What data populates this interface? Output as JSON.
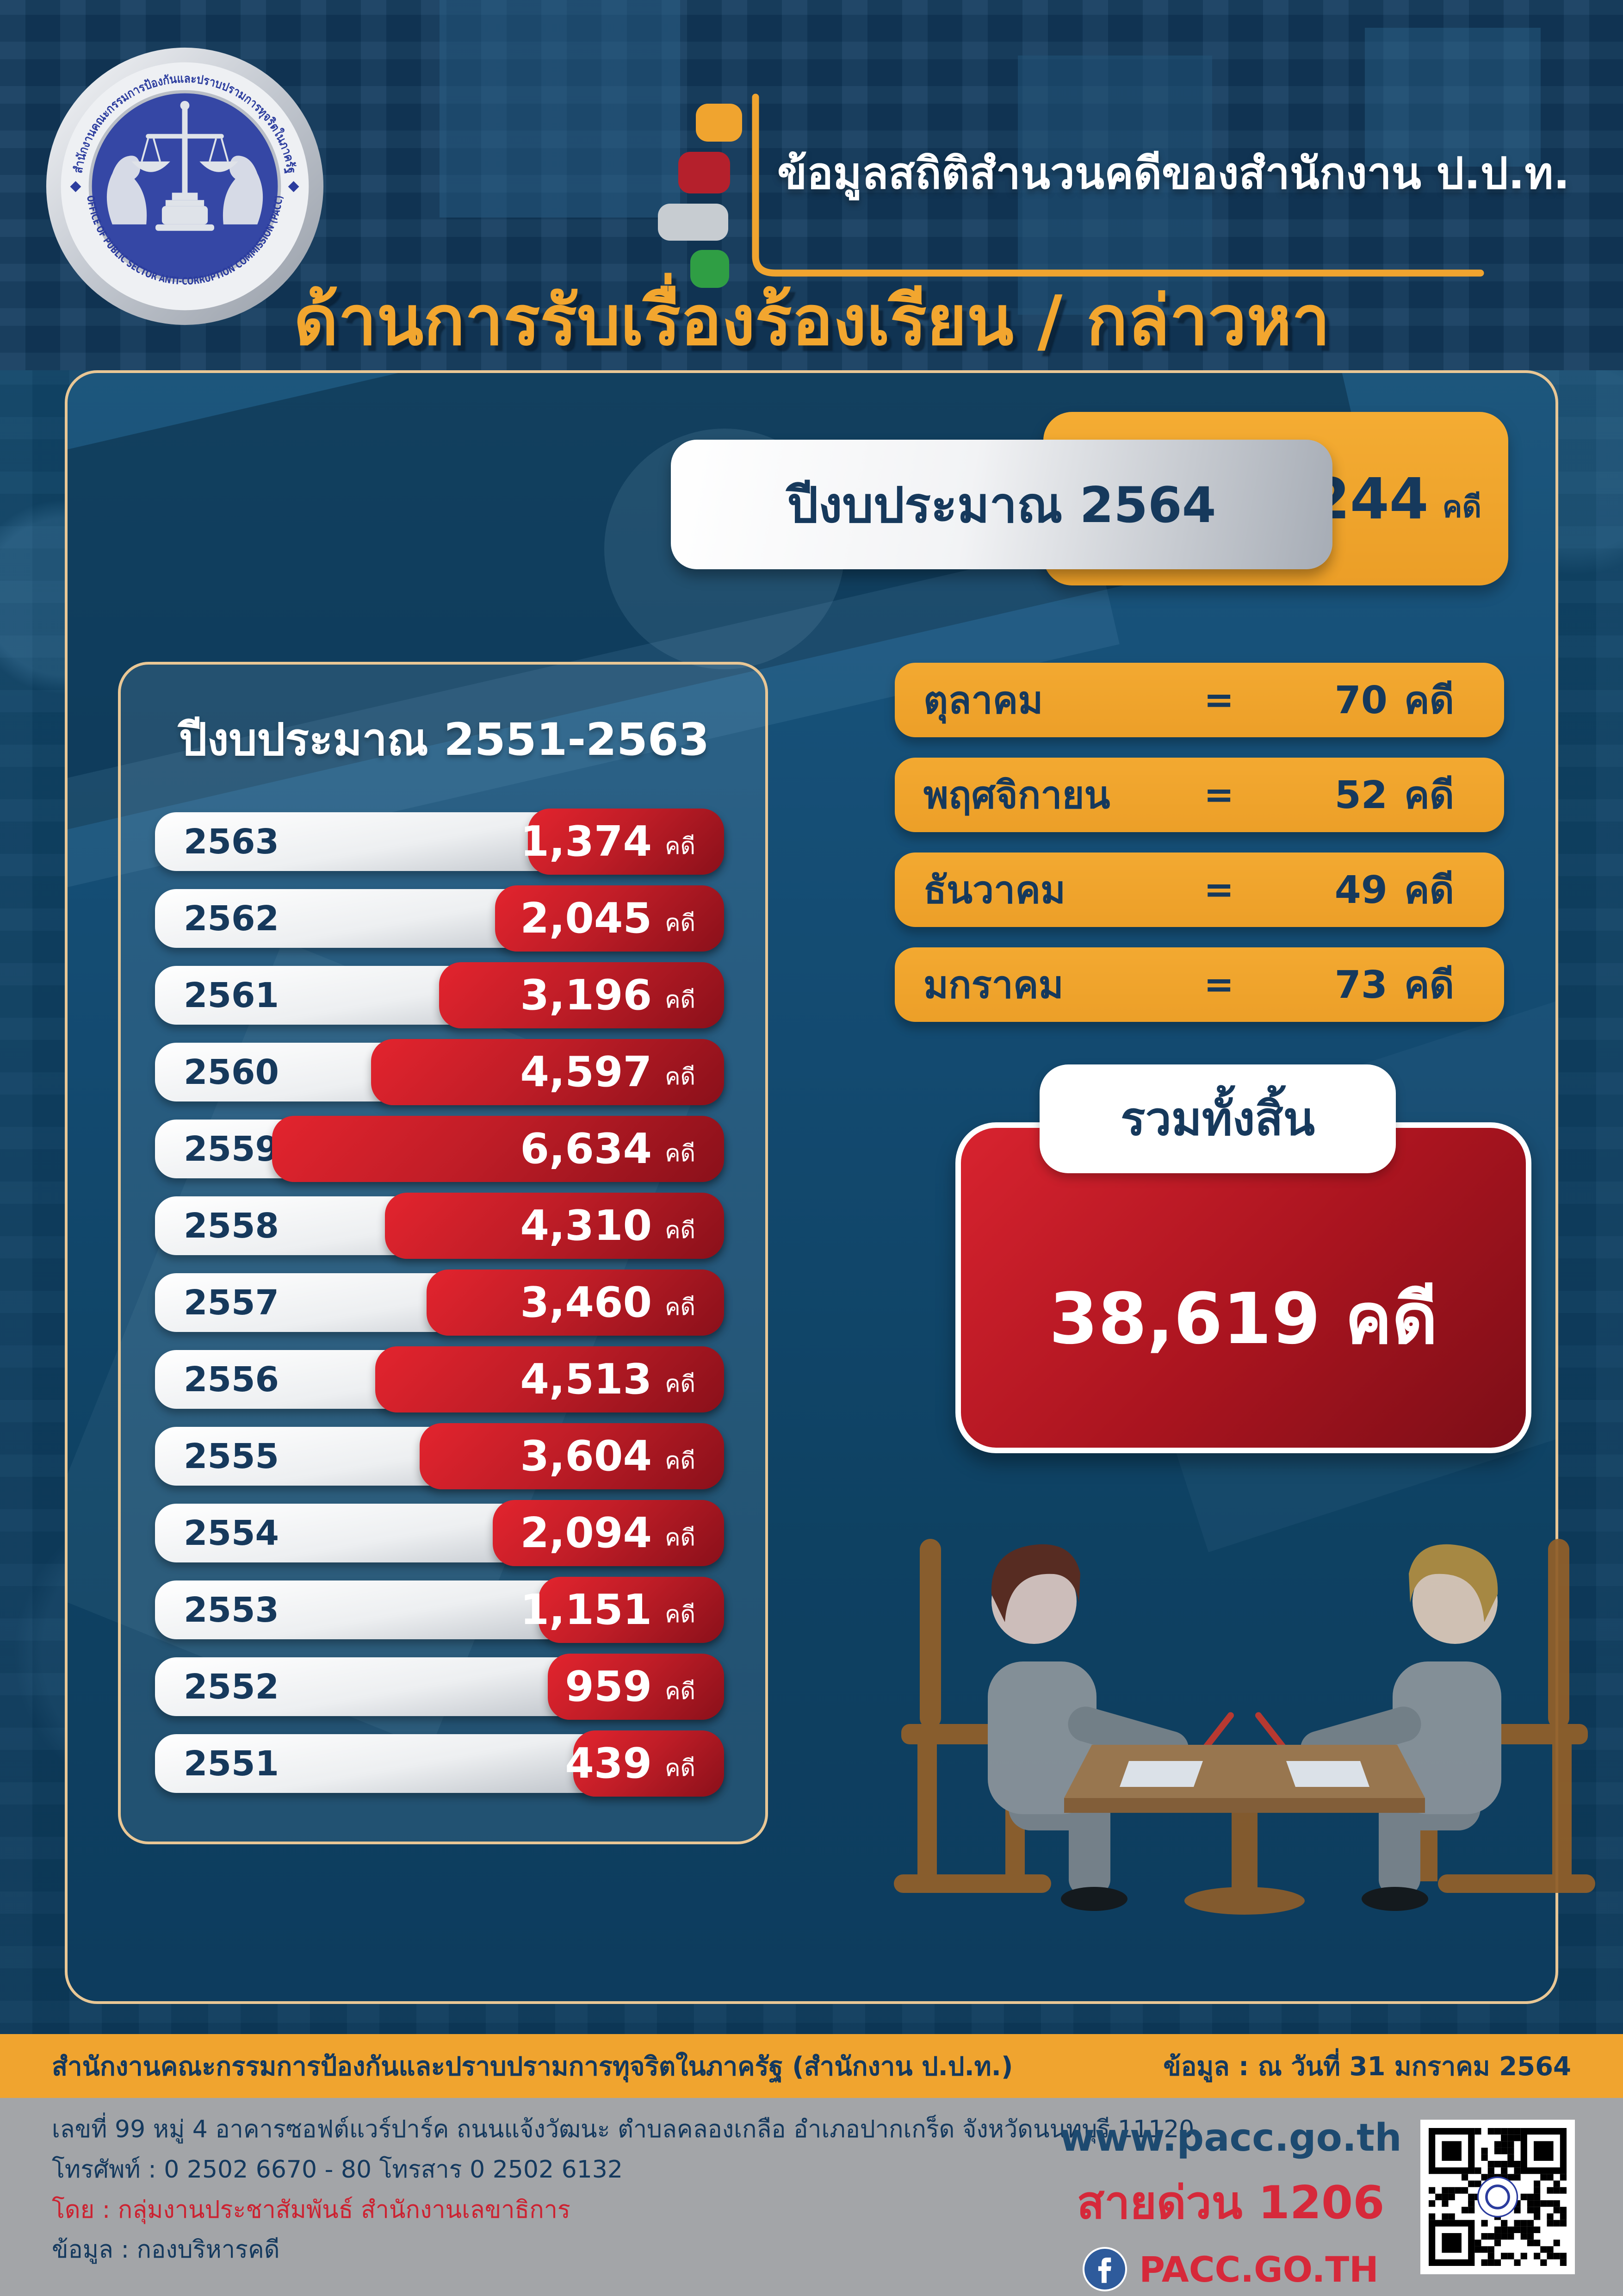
{
  "header": {
    "seal": {
      "thai_arc": "สำนักงานคณะกรรมการป้องกันและปราบปรามการทุจริตในภาครัฐ",
      "english_arc": "OFFICE OF PUBLIC SECTOR ANTI-CORRUPTION COMMISSION (PACC)"
    },
    "title": "ข้อมูลสถิติสำนวนคดีของสำนักงาน ป.ป.ท.",
    "subtitle": "ด้านการรับเรื่องร้องเรียน / กล่าวหา"
  },
  "banner": {
    "label": "ปีงบประมาณ 2564",
    "value": "244",
    "unit": "คดี"
  },
  "months": {
    "rows": [
      {
        "label": "ตุลาคม",
        "eq": "=",
        "value": "70",
        "unit": "คดี"
      },
      {
        "label": "พฤศจิกายน",
        "eq": "=",
        "value": "52",
        "unit": "คดี"
      },
      {
        "label": "ธันวาคม",
        "eq": "=",
        "value": "49",
        "unit": "คดี"
      },
      {
        "label": "มกราคม",
        "eq": "=",
        "value": "73",
        "unit": "คดี"
      }
    ]
  },
  "total": {
    "label": "รวมทั้งสิ้น",
    "value": "38,619 คดี"
  },
  "past_years": {
    "title": "ปีงบประมาณ 2551-2563",
    "rows": [
      {
        "year": "2563",
        "value": "1,374",
        "unit": "คดี",
        "n": 1374
      },
      {
        "year": "2562",
        "value": "2,045",
        "unit": "คดี",
        "n": 2045
      },
      {
        "year": "2561",
        "value": "3,196",
        "unit": "คดี",
        "n": 3196
      },
      {
        "year": "2560",
        "value": "4,597",
        "unit": "คดี",
        "n": 4597
      },
      {
        "year": "2559",
        "value": "6,634",
        "unit": "คดี",
        "n": 6634
      },
      {
        "year": "2558",
        "value": "4,310",
        "unit": "คดี",
        "n": 4310
      },
      {
        "year": "2557",
        "value": "3,460",
        "unit": "คดี",
        "n": 3460
      },
      {
        "year": "2556",
        "value": "4,513",
        "unit": "คดี",
        "n": 4513
      },
      {
        "year": "2555",
        "value": "3,604",
        "unit": "คดี",
        "n": 3604
      },
      {
        "year": "2554",
        "value": "2,094",
        "unit": "คดี",
        "n": 2094
      },
      {
        "year": "2553",
        "value": "1,151",
        "unit": "คดี",
        "n": 1151
      },
      {
        "year": "2552",
        "value": "959",
        "unit": "คดี",
        "n": 959
      },
      {
        "year": "2551",
        "value": "439",
        "unit": "คดี",
        "n": 439
      }
    ]
  },
  "footer": {
    "org": "สำนักงานคณะกรรมการป้องกันและปราบปรามการทุจริตในภาครัฐ (สำนักงาน ป.ป.ท.)",
    "data_date": "ข้อมูล : ณ วันที่ 31 มกราคม 2564",
    "address": "เลขที่ 99 หมู่ 4 อาคารซอฟต์แวร์ปาร์ค ถนนแจ้งวัฒนะ ตำบลคลองเกลือ อำเภอปากเกร็ด จังหวัดนนทบุรี 11120",
    "phone": "โทรศัพท์ : 0 2502 6670 - 80 โทรสาร 0 2502 6132",
    "credit": "โดย : กลุ่มงานประชาสัมพันธ์ สำนักงานเลขาธิการ",
    "source": "ข้อมูล : กองบริหารคดี",
    "website": "www.pacc.go.th",
    "hotline": "สายด่วน 1206",
    "facebook": "PACC.GO.TH"
  },
  "colors": {
    "accent_yellow": "#f0a42f",
    "bar_red": "#c01d27",
    "total_red": "#a9141f",
    "navy_text": "#16395c",
    "tan_border": "#e9c795",
    "silver": "#c6cad0",
    "red_text": "#d6293a",
    "footer_gray": "#a3a5a8"
  },
  "chart_data": {
    "type": "bar",
    "orientation": "horizontal",
    "title": "ปีงบประมาณ 2551-2563",
    "categories": [
      "2563",
      "2562",
      "2561",
      "2560",
      "2559",
      "2558",
      "2557",
      "2556",
      "2555",
      "2554",
      "2553",
      "2552",
      "2551"
    ],
    "values": [
      1374,
      2045,
      3196,
      4597,
      6634,
      4310,
      3460,
      4513,
      3604,
      2094,
      1151,
      959,
      439
    ],
    "unit": "คดี",
    "xlim": [
      0,
      6634
    ],
    "value_labels_shown": true,
    "annotations": {
      "fiscal_year_2564_cases": 244,
      "monthly_2564": {
        "ตุลาคม": 70,
        "พฤศจิกายน": 52,
        "ธันวาคม": 49,
        "มกราคม": 73
      },
      "grand_total_label": "รวมทั้งสิ้น",
      "grand_total_cases": 38619
    }
  }
}
